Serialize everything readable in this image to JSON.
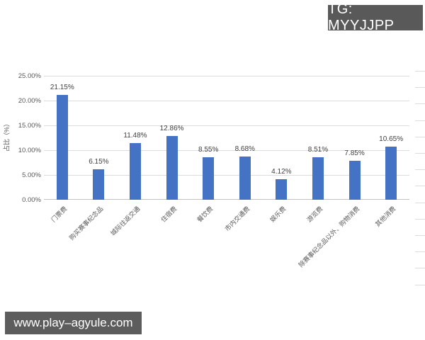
{
  "overlays": {
    "tg_badge": "TG: MYYJJPP",
    "watermark": "www.play–agyule.com"
  },
  "chart_data": {
    "type": "bar",
    "title": "",
    "xlabel": "",
    "ylabel": "占比（%）",
    "categories": [
      "门票费",
      "购买赛事纪念品",
      "城际往返交通",
      "住宿费",
      "餐饮费",
      "市内交通费",
      "娱乐费",
      "游览费",
      "除赛事纪念品以外、购物消费",
      "其他消费"
    ],
    "values": [
      21.15,
      6.15,
      11.48,
      12.86,
      8.55,
      8.68,
      4.12,
      8.51,
      7.85,
      10.65
    ],
    "data_labels": [
      "21.15%",
      "6.15%",
      "11.48%",
      "12.86%",
      "8.55%",
      "8.68%",
      "4.12%",
      "8.51%",
      "7.85%",
      "10.65%"
    ],
    "y_ticks": [
      "25.00%",
      "20.00%",
      "15.00%",
      "10.00%",
      "5.00%",
      "0.00%"
    ],
    "ylim": [
      0,
      25
    ],
    "grid": true,
    "legend": "none",
    "bar_color": "#4472C4"
  }
}
